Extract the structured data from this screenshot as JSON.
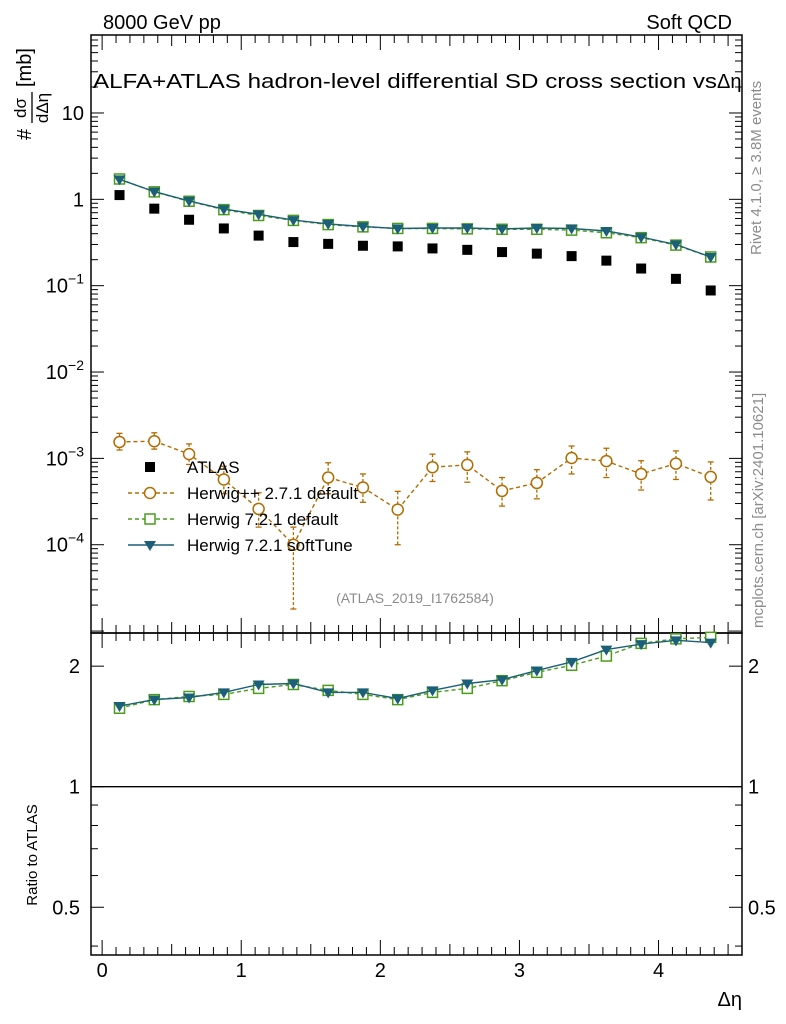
{
  "header": {
    "left": "8000 GeV pp",
    "right": "Soft QCD",
    "title": "ALFA+ATLAS hadron-level differential SD cross section vs",
    "title_symbol": "Δη"
  },
  "side_labels": {
    "rivet": "Rivet 4.1.0, ≥ 3.8M events",
    "mcplots": "mcplots.cern.ch [arXiv:2401.10621]"
  },
  "watermark": "(ATLAS_2019_I1762584)",
  "chart_data": [
    {
      "type": "scatter",
      "panel": "main",
      "yscale": "log",
      "ylabel": "# dσ/dΔη [mb]",
      "ylabel_hash": "#",
      "ylabel_num": "dσ",
      "ylabel_den": "dΔη",
      "ylabel_unit": "[mb]",
      "xlim": [
        -0.08,
        4.6
      ],
      "ylim": [
        9.5e-06,
        80
      ],
      "yticks": [
        {
          "value": 10,
          "base": "10",
          "exp": ""
        },
        {
          "value": 1,
          "base": "1",
          "exp": ""
        },
        {
          "value": 0.1,
          "base": "10",
          "exp": "−1"
        },
        {
          "value": 0.01,
          "base": "10",
          "exp": "−2"
        },
        {
          "value": 0.001,
          "base": "10",
          "exp": "−3"
        },
        {
          "value": 0.0001,
          "base": "10",
          "exp": "−4"
        }
      ],
      "x": [
        0.125,
        0.375,
        0.625,
        0.875,
        1.125,
        1.375,
        1.625,
        1.875,
        2.125,
        2.375,
        2.625,
        2.875,
        3.125,
        3.375,
        3.625,
        3.875,
        4.125,
        4.375
      ],
      "series": [
        {
          "name": "ATLAS",
          "color": "#000000",
          "marker": "square-filled",
          "values": [
            1.12,
            0.78,
            0.58,
            0.46,
            0.38,
            0.32,
            0.305,
            0.29,
            0.285,
            0.27,
            0.26,
            0.245,
            0.235,
            0.22,
            0.195,
            0.158,
            0.12,
            0.088
          ]
        },
        {
          "name": "Herwig++ 2.7.1 default",
          "color": "#b36b00",
          "marker": "circle-open",
          "dash": "4,3",
          "values": [
            0.00155,
            0.00158,
            0.00112,
            0.00057,
            0.00026,
            0.0001,
            0.0006,
            0.00046,
            0.000255,
            0.00079,
            0.00084,
            0.00042,
            0.00052,
            0.00101,
            0.00093,
            0.00066,
            0.00087,
            0.00061
          ],
          "err_low": [
            0.0003,
            0.0003,
            0.00027,
            0.00018,
            0.0001,
            8.2e-05,
            0.00021,
            0.00015,
            0.000155,
            0.00025,
            0.00031,
            0.00014,
            0.00018,
            0.00035,
            0.00033,
            0.00023,
            0.0003,
            0.00028
          ],
          "err_high": [
            0.0004,
            0.0004,
            0.00035,
            0.00024,
            0.00014,
            6e-05,
            0.00029,
            0.0002,
            0.00016,
            0.00033,
            0.00035,
            0.00018,
            0.00022,
            0.00038,
            0.00038,
            0.00028,
            0.00035,
            0.0003
          ]
        },
        {
          "name": "Herwig 7.2.1 default",
          "color": "#4a9c1a",
          "marker": "square-open",
          "dash": "4,3",
          "values": [
            1.72,
            1.22,
            0.95,
            0.76,
            0.65,
            0.57,
            0.51,
            0.48,
            0.46,
            0.46,
            0.455,
            0.45,
            0.45,
            0.44,
            0.41,
            0.36,
            0.295,
            0.215
          ]
        },
        {
          "name": "Herwig 7.2.1 softTune",
          "color": "#1b5f78",
          "marker": "triangle-down",
          "dash": "",
          "values": [
            1.7,
            1.23,
            0.96,
            0.77,
            0.67,
            0.575,
            0.52,
            0.485,
            0.46,
            0.465,
            0.465,
            0.455,
            0.465,
            0.46,
            0.43,
            0.365,
            0.3,
            0.215
          ]
        }
      ]
    },
    {
      "type": "scatter",
      "panel": "ratio",
      "yscale": "log",
      "ylabel": "Ratio to ATLAS",
      "xlabel": "Δη",
      "xlim": [
        -0.08,
        4.6
      ],
      "ylim": [
        0.38,
        2.42
      ],
      "xticks": [
        0,
        1,
        2,
        3,
        4
      ],
      "xtick_labels": [
        "0",
        "1",
        "2",
        "3",
        "4"
      ],
      "yticks": [
        0.5,
        1,
        2
      ],
      "ytick_labels": [
        "0.5",
        "1",
        "2"
      ],
      "x": [
        0.125,
        0.375,
        0.625,
        0.875,
        1.125,
        1.375,
        1.625,
        1.875,
        2.125,
        2.375,
        2.625,
        2.875,
        3.125,
        3.375,
        3.625,
        3.875,
        4.125,
        4.375
      ],
      "series": [
        {
          "name": "Herwig 7.2.1 default",
          "color": "#4a9c1a",
          "marker": "square-open",
          "dash": "4,3",
          "values": [
            1.57,
            1.65,
            1.68,
            1.7,
            1.76,
            1.8,
            1.74,
            1.7,
            1.65,
            1.72,
            1.76,
            1.84,
            1.93,
            2.01,
            2.12,
            2.28,
            2.34,
            2.36
          ]
        },
        {
          "name": "Herwig 7.2.1 softTune",
          "color": "#1b5f78",
          "marker": "triangle-down",
          "dash": "",
          "values": [
            1.59,
            1.65,
            1.67,
            1.72,
            1.8,
            1.81,
            1.72,
            1.72,
            1.66,
            1.74,
            1.81,
            1.85,
            1.95,
            2.05,
            2.2,
            2.27,
            2.32,
            2.29
          ]
        }
      ]
    }
  ]
}
